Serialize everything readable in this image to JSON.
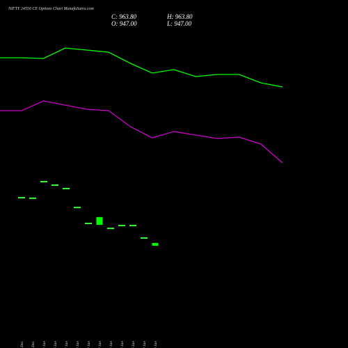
{
  "header": {
    "title": "NIFTY 24550  CE Options  Chart MunafaSutra.com",
    "ohlc": [
      "C: 963.80",
      "H: 963.80",
      "O: 947.00",
      "L: 947.00"
    ]
  },
  "chart_data": [
    {
      "type": "candlestick",
      "categories": [
        "29 Dec",
        "30 Dec",
        "03 Jan",
        "06 Jan",
        "07 Jan",
        "08 Jan",
        "09 Jan",
        "12 Jan",
        "13 Jan",
        "14 Jan",
        "16 Jan",
        "19 Jan",
        "20 Jan"
      ],
      "open": [
        1241,
        1238,
        1338,
        1317,
        1296,
        1182,
        1086,
        1073,
        1056,
        1073,
        1073,
        998,
        947
      ],
      "high": [
        1241,
        1238,
        1338,
        1317,
        1296,
        1182,
        1086,
        1120,
        1056,
        1073,
        1073,
        998,
        963.8
      ],
      "low": [
        1233,
        1232,
        1330,
        1309,
        1288,
        1175,
        1078,
        1073,
        1049,
        1066,
        1066,
        990,
        947
      ],
      "close": [
        1233,
        1232,
        1330,
        1309,
        1288,
        1175,
        1078,
        1120,
        1049,
        1066,
        1066,
        990,
        963.8
      ],
      "up_color": "#00ff00",
      "flat_color": "#33ff33",
      "ylim": [
        330,
        2430
      ]
    },
    {
      "type": "line",
      "series": [
        {
          "color": "#00ff00",
          "values": [
            2081.4,
            2081.4,
            2077.2,
            2140.2,
            2127.6,
            2115,
            2047.8,
            1989,
            2010,
            1968,
            1980.6,
            1980.6,
            1930.2,
            1905
          ]
        },
        {
          "color": "#cc00cc",
          "values": [
            1762.2,
            1762.2,
            1821,
            1795.8,
            1770.6,
            1762.2,
            1665.6,
            1598.4,
            1636.2,
            1615.2,
            1594.2,
            1602.6,
            1560.6,
            1447.2
          ]
        }
      ],
      "ylim": [
        330,
        2430
      ]
    }
  ]
}
